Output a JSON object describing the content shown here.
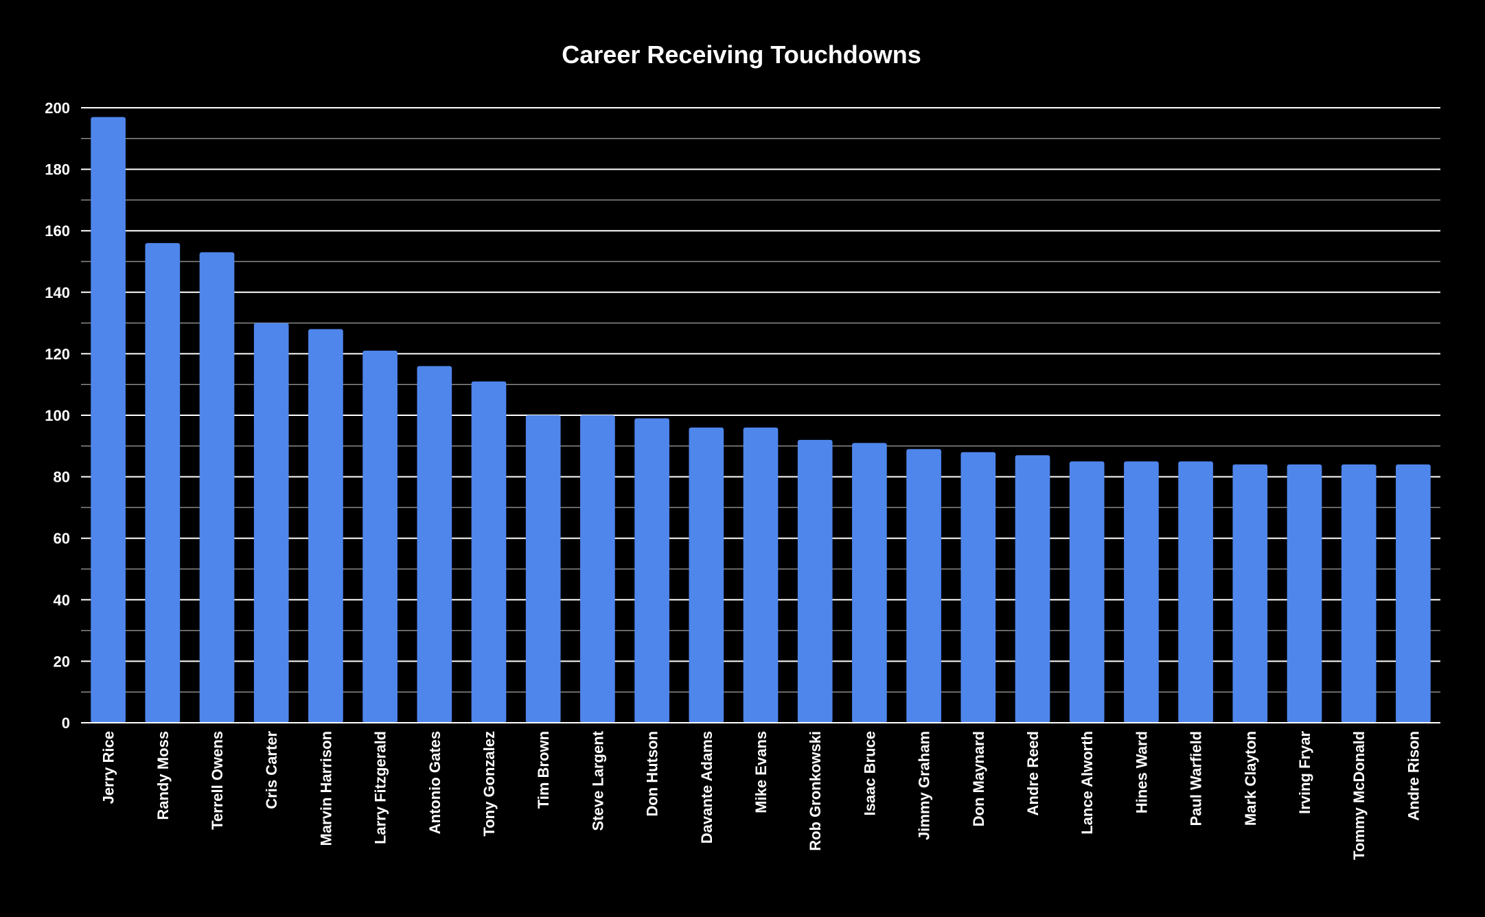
{
  "chart_data": {
    "type": "bar",
    "title": "Career Receiving Touchdowns",
    "xlabel": "",
    "ylabel": "",
    "ylim": [
      0,
      200
    ],
    "major_ticks": [
      0,
      20,
      40,
      60,
      80,
      100,
      120,
      140,
      160,
      180,
      200
    ],
    "minor_ticks": [
      10,
      30,
      50,
      70,
      90,
      110,
      130,
      150,
      170,
      190
    ],
    "grid": true,
    "legend": "none",
    "categories": [
      "Jerry Rice",
      "Randy Moss",
      "Terrell Owens",
      "Cris Carter",
      "Marvin Harrison",
      "Larry Fitzgerald",
      "Antonio Gates",
      "Tony Gonzalez",
      "Tim Brown",
      "Steve Largent",
      "Don Hutson",
      "Davante Adams",
      "Mike Evans",
      "Rob Gronkowski",
      "Isaac Bruce",
      "Jimmy Graham",
      "Don Maynard",
      "Andre Reed",
      "Lance Alworth",
      "Hines Ward",
      "Paul Warfield",
      "Mark Clayton",
      "Irving Fryar",
      "Tommy McDonald",
      "Andre Rison"
    ],
    "values": [
      197,
      156,
      153,
      130,
      128,
      121,
      116,
      111,
      100,
      100,
      99,
      96,
      96,
      92,
      91,
      89,
      88,
      87,
      85,
      85,
      85,
      84,
      84,
      84,
      84
    ],
    "colors": {
      "background": "#000000",
      "bar": "#4f86ec",
      "text": "#ffffff",
      "major_grid": "#ffffff",
      "minor_grid": "#8a8a8a",
      "axis": "#ffffff"
    }
  }
}
